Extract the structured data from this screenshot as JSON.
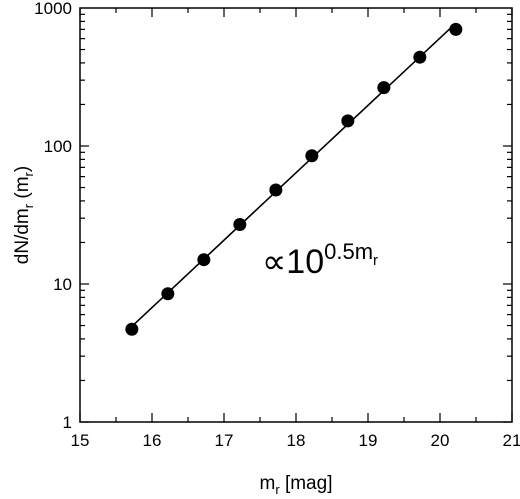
{
  "chart_data": {
    "type": "scatter",
    "xlabel": {
      "base": "m",
      "sub": "r",
      "rest": " [mag]"
    },
    "ylabel": {
      "p1": "dN/dm",
      "sub1": "r",
      "p2": " (m",
      "sub2": "r",
      "p3": ")"
    },
    "xlim": [
      15,
      21
    ],
    "ylim": [
      1,
      1000
    ],
    "yscale": "log",
    "grid": false,
    "xticks": [
      "15",
      "16",
      "17",
      "18",
      "19",
      "20",
      "21"
    ],
    "yticks": [
      "1",
      "10",
      "100",
      "1000"
    ],
    "series": [
      {
        "x": [
          15.72,
          16.22,
          16.72,
          17.22,
          17.72,
          18.22,
          18.72,
          19.22,
          19.72,
          20.22
        ],
        "y": [
          4.7,
          8.5,
          15,
          27,
          48,
          85,
          152,
          265,
          440,
          700
        ],
        "marker": "filled-circle",
        "fit_line": true,
        "color": "#000000"
      }
    ],
    "annotation": {
      "symbol": "∝",
      "base": "10",
      "exp": "0.5m",
      "exp_sub": "r"
    }
  }
}
